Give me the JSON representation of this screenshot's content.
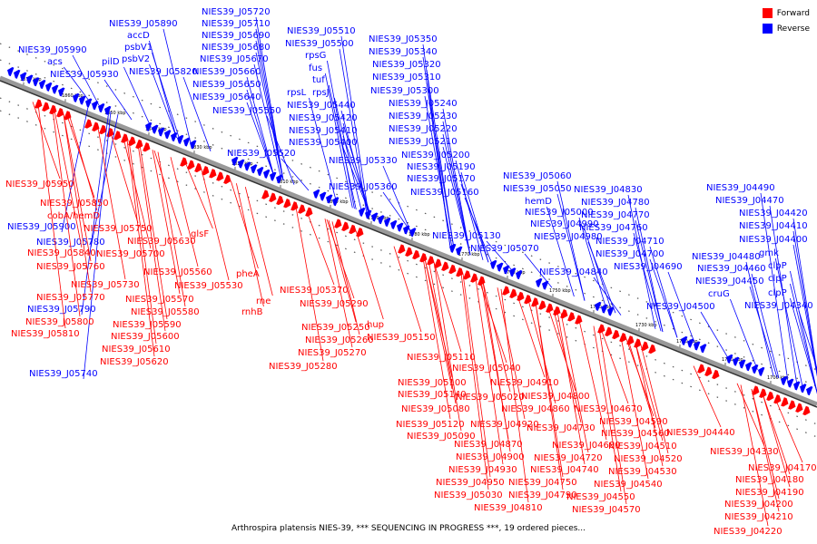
{
  "caption": "Arthrospira platensis NIES-39, *** SEQUENCING IN PROGRESS ***, 19 ordered pieces...",
  "legend": [
    {
      "label": "Forward",
      "color": "#ff0000"
    },
    {
      "label": "Reverse",
      "color": "#0000ff"
    }
  ],
  "colors": {
    "forward": "#ff0000",
    "reverse": "#0000ff",
    "backbone": "#808080"
  },
  "ticks": [
    "1870 kbp",
    "1860 kbp",
    "1850 kbp",
    "1840 kbp",
    "1830 kbp",
    "1820 kbp",
    "1810 kbp",
    "1800 kbp",
    "1790 kbp",
    "1780 kbp",
    "1770 kbp",
    "1760 kbp",
    "1750 kbp",
    "1740 kbp",
    "1730 kbp",
    "1720 kbp",
    "1710 kbp",
    "1700 kbp"
  ],
  "reverse_labels": [
    "NIES39_J05720",
    "NIES39_J05890",
    "NIES39_J05710",
    "NIES39_J05690",
    "NIES39_J05680",
    "accD",
    "psbV1",
    "NIES39_J05990",
    "NIES39_J05670",
    "psbV2",
    "pilD",
    "acs",
    "NIES39_J05820",
    "NIES39_J05660",
    "NIES39_J05930",
    "NIES39_J05650",
    "NIES39_J05640",
    "NIES39_J05550",
    "NIES39_J05510",
    "NIES39_J05500",
    "rpsG",
    "fus",
    "tuf",
    "rpsL",
    "rpsJ",
    "NIES39_J05440",
    "NIES39_J05420",
    "NIES39_J05410",
    "NIES39_J05400",
    "NIES39_J05520",
    "NIES39_J05330",
    "NIES39_J05360",
    "NIES39_J05350",
    "NIES39_J05340",
    "NIES39_J05320",
    "NIES39_J05310",
    "NIES39_J05300",
    "NIES39_J05240",
    "NIES39_J05230",
    "NIES39_J05220",
    "NIES39_J05210",
    "NIES39_J05200",
    "NIES39_J05190",
    "NIES39_J05170",
    "NIES39_J05160",
    "NIES39_J05130",
    "NIES39_J05070",
    "NIES39_J05060",
    "NIES39_J05050",
    "hemD",
    "NIES39_J05000",
    "NIES39_J04990",
    "NIES39_J04980",
    "NIES39_J04840",
    "NIES39_J04830",
    "NIES39_J04780",
    "NIES39_J04770",
    "NIES39_J04760",
    "NIES39_J04710",
    "NIES39_J04700",
    "NIES39_J04690",
    "NIES39_J04500",
    "NIES39_J04490",
    "NIES39_J04470",
    "NIES39_J04420",
    "NIES39_J04410",
    "NIES39_J04400",
    "NIES39_J04480",
    "gmk",
    "NIES39_J04460",
    "clpP",
    "NIES39_J04450",
    "clpP",
    "cruG",
    "clpP",
    "NIES39_J04340",
    "NIES39_J05900",
    "NIES39_J05780",
    "NIES39_J05790",
    "NIES39_J05740"
  ],
  "forward_labels": [
    "NIES39_J05950",
    "NIES39_J05850",
    "cobA/hemD",
    "NIES39_J05750",
    "NIES39_J05630",
    "NIES39_J05840",
    "NIES39_J05700",
    "NIES39_J05760",
    "NIES39_J05730",
    "NIES39_J05560",
    "NIES39_J05770",
    "NIES39_J05570",
    "NIES39_J05580",
    "NIES39_J05800",
    "NIES39_J05590",
    "NIES39_J05810",
    "NIES39_J05600",
    "NIES39_J05610",
    "NIES39_J05620",
    "glsF",
    "NIES39_J05530",
    "pheA",
    "NIES39_J05370",
    "rne",
    "rnhB",
    "NIES39_J05290",
    "NIES39_J05250",
    "NIES39_J05260",
    "NIES39_J05270",
    "NIES39_J05280",
    "hup",
    "NIES39_J05150",
    "NIES39_J05110",
    "NIES39_J05040",
    "NIES39_J05100",
    "NIES39_J04910",
    "NIES39_J05140",
    "NIES39_J05020",
    "NIES39_J04800",
    "NIES39_J05080",
    "NIES39_J04860",
    "NIES39_J04670",
    "NIES39_J05120",
    "NIES39_J04920",
    "NIES39_J04590",
    "NIES39_J05090",
    "NIES39_J04730",
    "NIES39_J04560",
    "NIES39_J04870",
    "NIES39_J04680",
    "NIES39_J04510",
    "NIES39_J04900",
    "NIES39_J04720",
    "NIES39_J04520",
    "NIES39_J04930",
    "NIES39_J04740",
    "NIES39_J04530",
    "NIES39_J04950",
    "NIES39_J04750",
    "NIES39_J04540",
    "NIES39_J05030",
    "NIES39_J04790",
    "NIES39_J04550",
    "NIES39_J04810",
    "NIES39_J04570",
    "NIES39_J04440",
    "NIES39_J04330",
    "NIES39_J04170",
    "NIES39_J04180",
    "NIES39_J04190",
    "NIES39_J04200",
    "NIES39_J04210",
    "NIES39_J04220"
  ]
}
